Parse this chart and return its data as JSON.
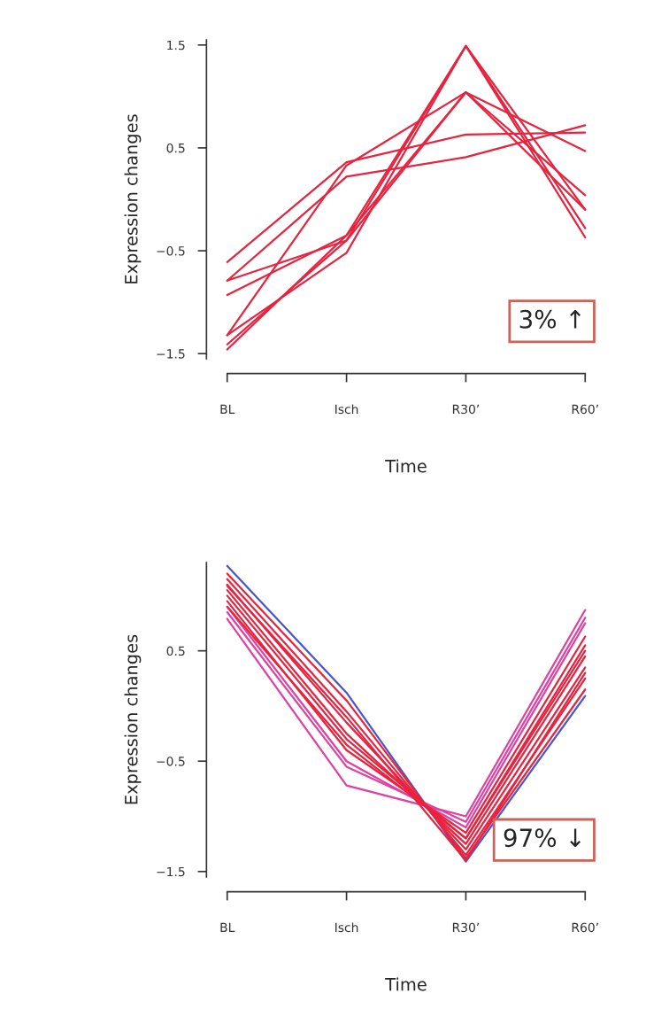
{
  "chart_data": [
    {
      "type": "line",
      "xlabel": "Time",
      "ylabel": "Expression changes",
      "categories": [
        "BL",
        "Isch",
        "R30’",
        "R60’"
      ],
      "ylim": [
        -1.55,
        1.55
      ],
      "yticks": [
        -1.5,
        -0.5,
        0.5,
        1.5
      ],
      "annotations": [
        "3% ↑"
      ],
      "series": [
        {
          "color": "#e8233f",
          "values": [
            -0.61,
            0.36,
            0.63,
            0.65
          ]
        },
        {
          "color": "#e8233f",
          "values": [
            -0.79,
            0.22,
            0.41,
            0.72
          ]
        },
        {
          "color": "#e8233f",
          "values": [
            -0.93,
            -0.35,
            1.04,
            0.47
          ]
        },
        {
          "color": "#e8233f",
          "values": [
            -0.79,
            -0.4,
            1.04,
            0.04
          ]
        },
        {
          "color": "#e8233f",
          "values": [
            -1.32,
            -0.52,
            1.49,
            -0.1
          ]
        },
        {
          "color": "#e8233f",
          "values": [
            -1.41,
            -0.4,
            1.49,
            -0.28
          ]
        },
        {
          "color": "#e8233f",
          "values": [
            -1.46,
            -0.35,
            1.49,
            -0.37
          ]
        },
        {
          "color": "#e8233f",
          "values": [
            -1.32,
            0.33,
            1.04,
            -0.1
          ]
        }
      ]
    },
    {
      "type": "line",
      "xlabel": "Time",
      "ylabel": "Expression changes",
      "categories": [
        "BL",
        "Isch",
        "R30’",
        "R60’"
      ],
      "ylim": [
        -1.55,
        1.3
      ],
      "yticks": [
        -1.5,
        -0.5,
        0.5
      ],
      "annotations": [
        "97% ↓"
      ],
      "series": [
        {
          "color": "#4a55c8",
          "values": [
            1.27,
            0.12,
            -1.41,
            0.09
          ]
        },
        {
          "color": "#e040a0",
          "values": [
            0.79,
            -0.72,
            -1.0,
            0.87
          ]
        },
        {
          "color": "#e040a0",
          "values": [
            0.85,
            -0.55,
            -1.05,
            0.8
          ]
        },
        {
          "color": "#e040a0",
          "values": [
            0.9,
            -0.5,
            -1.1,
            0.75
          ]
        },
        {
          "color": "#e8233f",
          "values": [
            1.2,
            0.05,
            -1.38,
            0.15
          ]
        },
        {
          "color": "#e8233f",
          "values": [
            1.15,
            -0.05,
            -1.35,
            0.25
          ]
        },
        {
          "color": "#e8233f",
          "values": [
            1.1,
            -0.15,
            -1.3,
            0.35
          ]
        },
        {
          "color": "#e8233f",
          "values": [
            1.05,
            -0.25,
            -1.25,
            0.45
          ]
        },
        {
          "color": "#e8233f",
          "values": [
            1.0,
            -0.3,
            -1.2,
            0.55
          ]
        },
        {
          "color": "#e8233f",
          "values": [
            0.95,
            -0.4,
            -1.15,
            0.63
          ]
        },
        {
          "color": "#e8233f",
          "values": [
            1.09,
            -0.1,
            -1.4,
            0.3
          ]
        },
        {
          "color": "#e8233f",
          "values": [
            0.9,
            -0.35,
            -1.2,
            0.5
          ]
        }
      ]
    }
  ]
}
